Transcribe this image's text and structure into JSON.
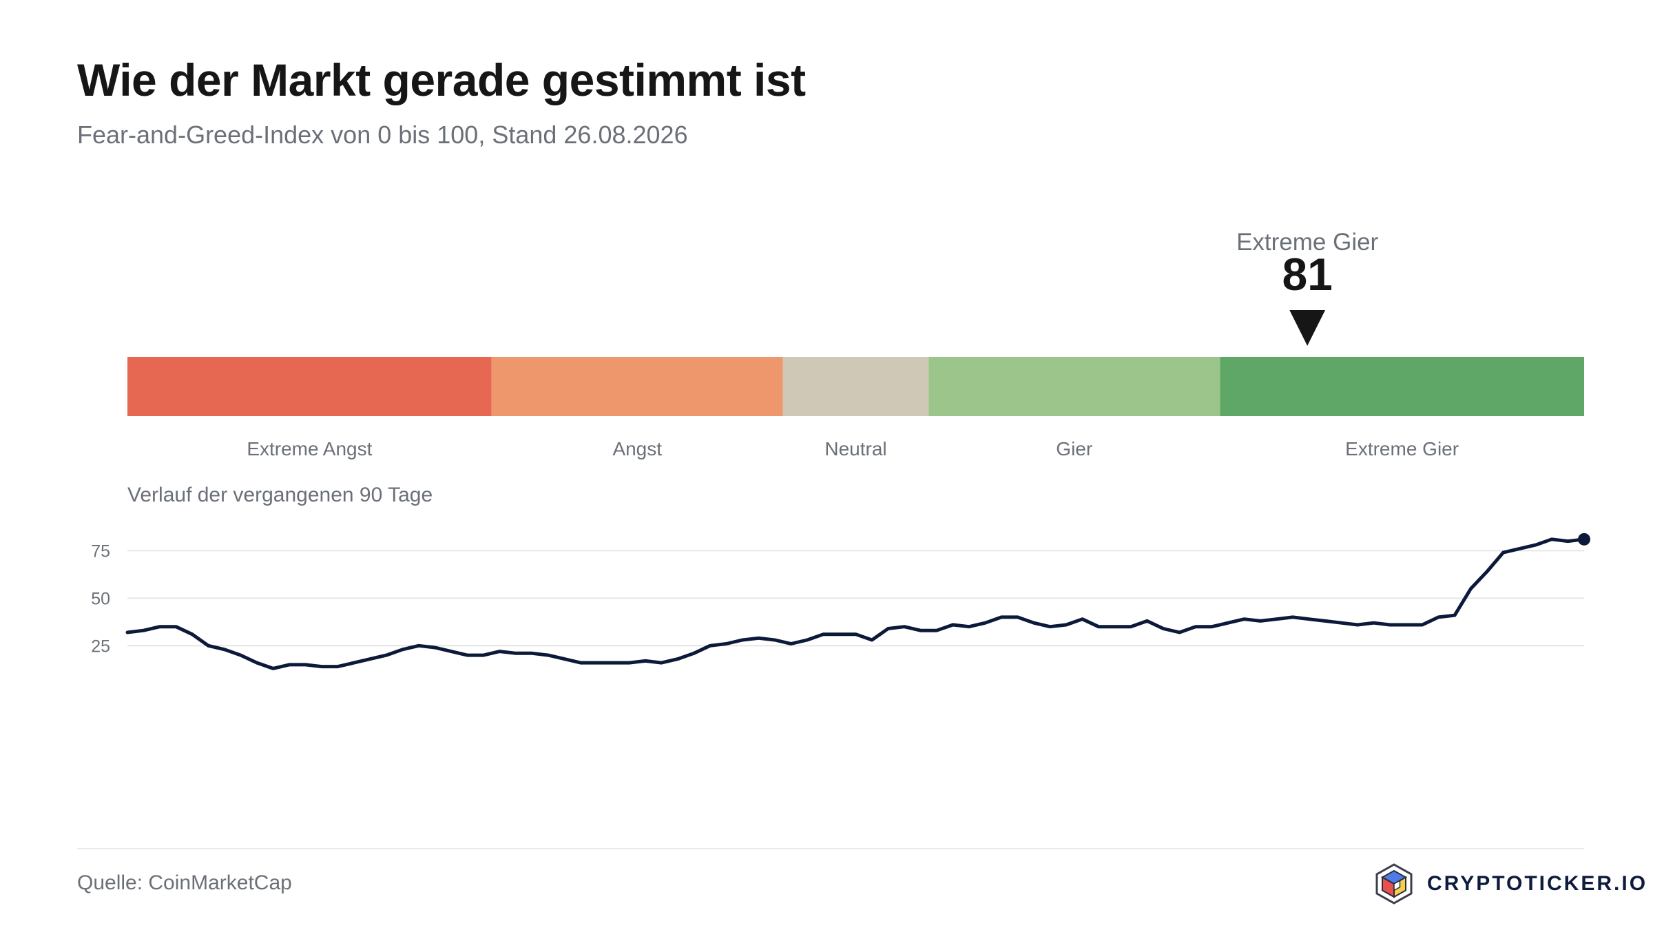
{
  "header": {
    "title": "Wie der Markt gerade gestimmt ist",
    "subtitle": "Fear-and-Greed-Index von 0 bis 100, Stand 26.08.2026"
  },
  "footer": {
    "source": "Quelle: CoinMarketCap",
    "brand": "CRYPTOTICKER.IO",
    "logo_icon": "cube-logo-icon"
  },
  "chart_data": [
    {
      "type": "bar",
      "subtype": "gauge-scale",
      "range": [
        0,
        100
      ],
      "current": {
        "value": 81,
        "value_label": "81",
        "label": "Extreme Gier",
        "marker_icon": "down-triangle-icon"
      },
      "bands": [
        {
          "label": "Extreme Angst",
          "from": 0,
          "to": 25,
          "color": "#e66853"
        },
        {
          "label": "Angst",
          "from": 25,
          "to": 45,
          "color": "#ee976c"
        },
        {
          "label": "Neutral",
          "from": 45,
          "to": 55,
          "color": "#cfc8b6"
        },
        {
          "label": "Gier",
          "from": 55,
          "to": 75,
          "color": "#9bc58b"
        },
        {
          "label": "Extreme Gier",
          "from": 75,
          "to": 100,
          "color": "#5ea766"
        }
      ]
    },
    {
      "type": "line",
      "title": "Verlauf der vergangenen 90 Tage",
      "y_ticks": [
        25,
        50,
        75
      ],
      "ylim": [
        -30,
        90
      ],
      "grid": true,
      "line_color": "#0c1a3a",
      "values": [
        32,
        33,
        35,
        35,
        31,
        25,
        23,
        20,
        16,
        13,
        15,
        15,
        14,
        14,
        16,
        18,
        20,
        23,
        25,
        24,
        22,
        20,
        20,
        22,
        21,
        21,
        20,
        18,
        16,
        16,
        16,
        16,
        17,
        16,
        18,
        21,
        25,
        26,
        28,
        29,
        28,
        26,
        28,
        31,
        31,
        31,
        28,
        34,
        35,
        33,
        33,
        36,
        35,
        37,
        40,
        40,
        37,
        35,
        36,
        39,
        35,
        35,
        35,
        38,
        34,
        32,
        35,
        35,
        37,
        39,
        38,
        39,
        40,
        39,
        38,
        37,
        36,
        37,
        36,
        36,
        36,
        40,
        41,
        55,
        64,
        74,
        76,
        78,
        81,
        80,
        81
      ]
    }
  ]
}
